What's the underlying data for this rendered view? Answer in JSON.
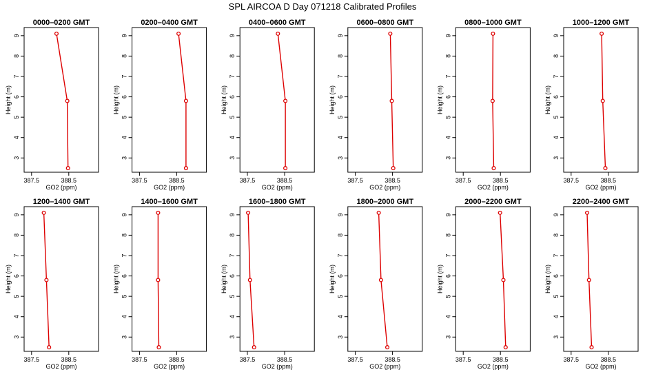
{
  "title": "SPL AIRCOA D  Day 071218  Calibrated Profiles",
  "style": {
    "series_color": "#dd0000",
    "frame_color": "#000000",
    "background": "#ffffff"
  },
  "axes": {
    "xlabel": "GO2 (ppm)",
    "ylabel": "Height (m)",
    "xlim": [
      387.3,
      389.3
    ],
    "ylim": [
      2.3,
      9.4
    ],
    "xticks": [
      387.5,
      388.5
    ],
    "yticks": [
      3,
      4,
      5,
      6,
      7,
      8,
      9
    ]
  },
  "chart_data": [
    {
      "type": "line",
      "title": "0000–0200 GMT",
      "x": [
        388.17,
        388.46,
        388.48
      ],
      "y": [
        9.1,
        5.8,
        2.5
      ]
    },
    {
      "type": "line",
      "title": "0200–0400 GMT",
      "x": [
        388.55,
        388.75,
        388.75
      ],
      "y": [
        9.1,
        5.8,
        2.5
      ]
    },
    {
      "type": "line",
      "title": "0400–0600 GMT",
      "x": [
        388.32,
        388.52,
        388.52
      ],
      "y": [
        9.1,
        5.8,
        2.5
      ]
    },
    {
      "type": "line",
      "title": "0600–0800 GMT",
      "x": [
        388.44,
        388.48,
        388.52
      ],
      "y": [
        9.1,
        5.8,
        2.5
      ]
    },
    {
      "type": "line",
      "title": "0800–1000 GMT",
      "x": [
        388.3,
        388.29,
        388.32
      ],
      "y": [
        9.1,
        5.8,
        2.5
      ]
    },
    {
      "type": "line",
      "title": "1000–1200 GMT",
      "x": [
        388.32,
        388.35,
        388.42
      ],
      "y": [
        9.1,
        5.8,
        2.5
      ]
    },
    {
      "type": "line",
      "title": "1200–1400 GMT",
      "x": [
        387.83,
        387.9,
        387.97
      ],
      "y": [
        9.1,
        5.8,
        2.5
      ]
    },
    {
      "type": "line",
      "title": "1400–1600 GMT",
      "x": [
        388.0,
        388.0,
        388.02
      ],
      "y": [
        9.1,
        5.8,
        2.5
      ]
    },
    {
      "type": "line",
      "title": "1600–1800 GMT",
      "x": [
        387.52,
        387.57,
        387.68
      ],
      "y": [
        9.1,
        5.8,
        2.5
      ]
    },
    {
      "type": "line",
      "title": "1800–2000 GMT",
      "x": [
        388.13,
        388.19,
        388.36
      ],
      "y": [
        9.1,
        5.8,
        2.5
      ]
    },
    {
      "type": "line",
      "title": "2000–2200 GMT",
      "x": [
        388.49,
        388.58,
        388.64
      ],
      "y": [
        9.1,
        5.8,
        2.5
      ]
    },
    {
      "type": "line",
      "title": "2200–2400 GMT",
      "x": [
        387.93,
        387.98,
        388.05
      ],
      "y": [
        9.1,
        5.8,
        2.5
      ]
    }
  ]
}
